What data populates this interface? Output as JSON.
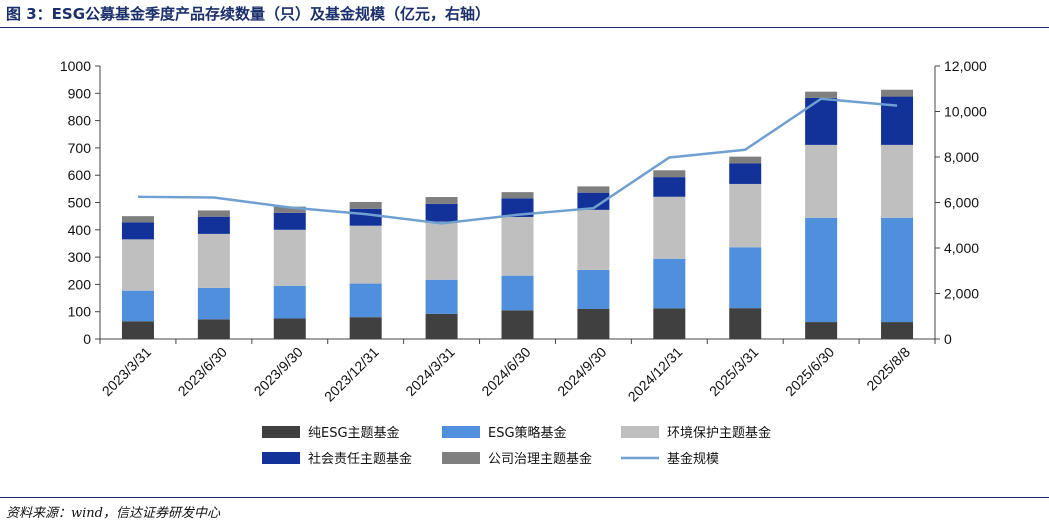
{
  "title": "图 3：ESG公募基金季度产品存续数量（只）及基金规模（亿元，右轴）",
  "source": "资料来源：wind，信达证券研发中心",
  "colors": {
    "pure_esg": "#404040",
    "esg_strategy": "#4f8fdc",
    "environment": "#bfbfbf",
    "social": "#12329a",
    "governance": "#7f7f7f",
    "scale_line": "#6fa0d0"
  },
  "chart_data": {
    "type": "bar",
    "stacked": true,
    "categories": [
      "2023/3/31",
      "2023/6/30",
      "2023/9/30",
      "2023/12/31",
      "2024/3/31",
      "2024/6/30",
      "2024/9/30",
      "2024/12/31",
      "2025/3/31",
      "2025/6/30",
      "2025/8/8"
    ],
    "ylim": [
      0,
      1000
    ],
    "yticks": [
      "0",
      "100",
      "200",
      "300",
      "400",
      "500",
      "600",
      "700",
      "800",
      "900",
      "1000"
    ],
    "y2lim": [
      0,
      12000
    ],
    "y2ticks": [
      "0",
      "2,000",
      "4,000",
      "6,000",
      "8,000",
      "10,000",
      "12,000"
    ],
    "series": [
      {
        "name": "纯ESG主题基金",
        "values": [
          65,
          72,
          75,
          80,
          92,
          105,
          110,
          112,
          113,
          62,
          62
        ]
      },
      {
        "name": "ESG策略基金",
        "values": [
          112,
          115,
          120,
          123,
          125,
          127,
          143,
          182,
          223,
          382,
          382
        ]
      },
      {
        "name": "环境保护主题基金",
        "values": [
          188,
          198,
          205,
          212,
          213,
          215,
          220,
          227,
          232,
          267,
          267
        ]
      },
      {
        "name": "社会责任主题基金",
        "values": [
          62,
          63,
          62,
          62,
          65,
          68,
          63,
          72,
          75,
          172,
          177
        ]
      },
      {
        "name": "公司治理主题基金",
        "values": [
          23,
          23,
          23,
          25,
          25,
          23,
          23,
          25,
          25,
          23,
          25
        ]
      }
    ],
    "line": {
      "name": "基金规模",
      "axis": "right",
      "values": [
        6250,
        6220,
        5780,
        5490,
        5080,
        5460,
        5750,
        7980,
        8320,
        10560,
        10260
      ]
    },
    "legend_position": "bottom"
  }
}
